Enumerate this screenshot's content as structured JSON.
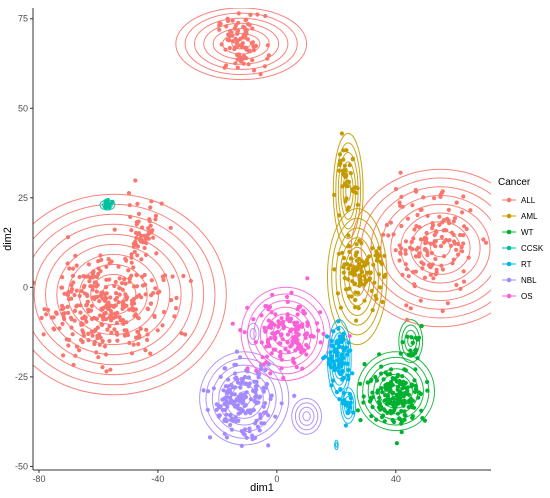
{
  "chart_data": {
    "type": "scatter",
    "xlabel": "dim1",
    "ylabel": "dim2",
    "xlim": [
      -82,
      72
    ],
    "ylim": [
      -51,
      78
    ],
    "x_ticks": [
      -80,
      -40,
      0,
      40
    ],
    "y_ticks": [
      -50,
      -25,
      0,
      25,
      50,
      75
    ],
    "grid": false,
    "legend": {
      "title": "Cancer",
      "placement": "right",
      "entries": [
        "ALL",
        "AML",
        "WT",
        "CCSK",
        "RT",
        "NBL",
        "OS"
      ]
    },
    "colors": {
      "ALL": "#F8766D",
      "AML": "#C49A00",
      "WT": "#00B02F",
      "CCSK": "#00C19F",
      "RT": "#00B6EB",
      "NBL": "#A58AFF",
      "OS": "#FB61D7"
    },
    "series": [
      {
        "name": "ALL",
        "clusters": [
          {
            "cx": -12,
            "cy": 68,
            "sx": 4,
            "sy": 4,
            "n": 90
          },
          {
            "cx": -58,
            "cy": -5,
            "sx": 10,
            "sy": 7,
            "n": 330
          },
          {
            "cx": -46,
            "cy": 15,
            "sx": 4,
            "sy": 5,
            "n": 55
          },
          {
            "cx": 52,
            "cy": 12,
            "sx": 7,
            "sy": 7,
            "n": 150
          }
        ]
      },
      {
        "name": "AML",
        "clusters": [
          {
            "cx": 23,
            "cy": 29,
            "sx": 2,
            "sy": 5,
            "n": 40
          },
          {
            "cx": 28,
            "cy": 4,
            "sx": 4,
            "sy": 4,
            "n": 110
          }
        ]
      },
      {
        "name": "WT",
        "clusters": [
          {
            "cx": 40,
            "cy": -30,
            "sx": 5,
            "sy": 4,
            "n": 180
          },
          {
            "cx": 46,
            "cy": -16,
            "sx": 2,
            "sy": 3,
            "n": 20
          }
        ]
      },
      {
        "name": "CCSK",
        "clusters": [
          {
            "cx": -57,
            "cy": 23,
            "sx": 0.7,
            "sy": 0.5,
            "n": 20
          }
        ]
      },
      {
        "name": "RT",
        "clusters": [
          {
            "cx": 21,
            "cy": -20,
            "sx": 2,
            "sy": 4,
            "n": 90
          },
          {
            "cx": 24,
            "cy": -33,
            "sx": 1,
            "sy": 2,
            "n": 20
          }
        ]
      },
      {
        "name": "NBL",
        "clusters": [
          {
            "cx": -12,
            "cy": -32,
            "sx": 5,
            "sy": 5,
            "n": 190
          }
        ]
      },
      {
        "name": "OS",
        "clusters": [
          {
            "cx": 3,
            "cy": -14,
            "sx": 6,
            "sy": 5,
            "n": 150
          }
        ]
      }
    ],
    "contours": [
      {
        "name": "ALL",
        "cx": -12,
        "cy": 68,
        "rx": 22,
        "ry": 10,
        "levels": 7
      },
      {
        "name": "ALL",
        "cx": -55,
        "cy": -2,
        "rx": 38,
        "ry": 28,
        "levels": 10
      },
      {
        "name": "ALL",
        "cx": 55,
        "cy": 11,
        "rx": 30,
        "ry": 22,
        "levels": 9
      },
      {
        "name": "AML",
        "cx": 24,
        "cy": 27,
        "rx": 5,
        "ry": 16,
        "levels": 6
      },
      {
        "name": "AML",
        "cx": 27,
        "cy": 3,
        "rx": 10,
        "ry": 19,
        "levels": 7
      },
      {
        "name": "WT",
        "cx": 40,
        "cy": -29,
        "rx": 13,
        "ry": 11,
        "levels": 7
      },
      {
        "name": "WT",
        "cx": 45,
        "cy": -15,
        "rx": 4,
        "ry": 6,
        "levels": 4
      },
      {
        "name": "CCSK",
        "cx": -57,
        "cy": 23,
        "rx": 2.5,
        "ry": 1.4,
        "levels": 3
      },
      {
        "name": "RT",
        "cx": 21,
        "cy": -20,
        "rx": 4,
        "ry": 11,
        "levels": 6
      },
      {
        "name": "RT",
        "cx": 24,
        "cy": -33,
        "rx": 2.5,
        "ry": 5,
        "levels": 4
      },
      {
        "name": "RT",
        "cx": 20,
        "cy": -44,
        "rx": 0.6,
        "ry": 1.3,
        "levels": 2
      },
      {
        "name": "NBL",
        "cx": -11,
        "cy": -31,
        "rx": 15,
        "ry": 13,
        "levels": 7
      },
      {
        "name": "NBL",
        "cx": 10,
        "cy": -36,
        "rx": 5,
        "ry": 5,
        "levels": 4
      },
      {
        "name": "NBL",
        "cx": -8,
        "cy": -13,
        "rx": 2,
        "ry": 3,
        "levels": 2
      },
      {
        "name": "OS",
        "cx": 3,
        "cy": -13,
        "rx": 15,
        "ry": 13,
        "levels": 7
      }
    ]
  }
}
